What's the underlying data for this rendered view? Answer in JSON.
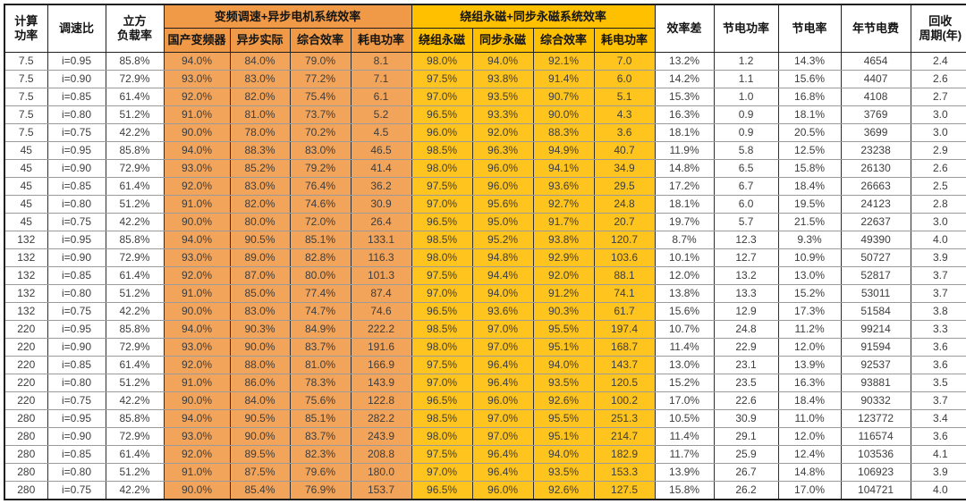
{
  "colors": {
    "orange_header": "#F09A47",
    "orange_cell": "#F2A45B",
    "yellow_header": "#FFC000",
    "yellow_cell": "#FFC51E"
  },
  "table": {
    "header": {
      "calc_power": "计算\n功率",
      "speed_ratio": "调速比",
      "cubic_load": "立方\n负载率",
      "group_vfd": "变频调速+异步电机系统效率",
      "group_pm": "绕组永磁+同步永磁系统效率",
      "vfd_sub": [
        "国产变频器",
        "异步实际",
        "综合效率",
        "耗电功率"
      ],
      "pm_sub": [
        "绕组永磁",
        "同步永磁",
        "综合效率",
        "耗电功率"
      ],
      "eff_diff": "效率差",
      "save_power": "节电功率",
      "save_rate": "节电率",
      "annual_fee": "年节电费",
      "payback": "回收\n周期(年)"
    },
    "rows": [
      [
        "7.5",
        "i=0.95",
        "85.8%",
        "94.0%",
        "84.0%",
        "79.0%",
        "8.1",
        "98.0%",
        "94.0%",
        "92.1%",
        "7.0",
        "13.2%",
        "1.2",
        "14.3%",
        "4654",
        "2.4"
      ],
      [
        "7.5",
        "i=0.90",
        "72.9%",
        "93.0%",
        "83.0%",
        "77.2%",
        "7.1",
        "97.5%",
        "93.8%",
        "91.4%",
        "6.0",
        "14.2%",
        "1.1",
        "15.6%",
        "4407",
        "2.6"
      ],
      [
        "7.5",
        "i=0.85",
        "61.4%",
        "92.0%",
        "82.0%",
        "75.4%",
        "6.1",
        "97.0%",
        "93.5%",
        "90.7%",
        "5.1",
        "15.3%",
        "1.0",
        "16.8%",
        "4108",
        "2.7"
      ],
      [
        "7.5",
        "i=0.80",
        "51.2%",
        "91.0%",
        "81.0%",
        "73.7%",
        "5.2",
        "96.5%",
        "93.3%",
        "90.0%",
        "4.3",
        "16.3%",
        "0.9",
        "18.1%",
        "3769",
        "3.0"
      ],
      [
        "7.5",
        "i=0.75",
        "42.2%",
        "90.0%",
        "78.0%",
        "70.2%",
        "4.5",
        "96.0%",
        "92.0%",
        "88.3%",
        "3.6",
        "18.1%",
        "0.9",
        "20.5%",
        "3699",
        "3.0"
      ],
      [
        "45",
        "i=0.95",
        "85.8%",
        "94.0%",
        "88.3%",
        "83.0%",
        "46.5",
        "98.5%",
        "96.3%",
        "94.9%",
        "40.7",
        "11.9%",
        "5.8",
        "12.5%",
        "23238",
        "2.9"
      ],
      [
        "45",
        "i=0.90",
        "72.9%",
        "93.0%",
        "85.2%",
        "79.2%",
        "41.4",
        "98.0%",
        "96.0%",
        "94.1%",
        "34.9",
        "14.8%",
        "6.5",
        "15.8%",
        "26130",
        "2.6"
      ],
      [
        "45",
        "i=0.85",
        "61.4%",
        "92.0%",
        "83.0%",
        "76.4%",
        "36.2",
        "97.5%",
        "96.0%",
        "93.6%",
        "29.5",
        "17.2%",
        "6.7",
        "18.4%",
        "26663",
        "2.5"
      ],
      [
        "45",
        "i=0.80",
        "51.2%",
        "91.0%",
        "82.0%",
        "74.6%",
        "30.9",
        "97.0%",
        "95.6%",
        "92.7%",
        "24.8",
        "18.1%",
        "6.0",
        "19.5%",
        "24123",
        "2.8"
      ],
      [
        "45",
        "i=0.75",
        "42.2%",
        "90.0%",
        "80.0%",
        "72.0%",
        "26.4",
        "96.5%",
        "95.0%",
        "91.7%",
        "20.7",
        "19.7%",
        "5.7",
        "21.5%",
        "22637",
        "3.0"
      ],
      [
        "132",
        "i=0.95",
        "85.8%",
        "94.0%",
        "90.5%",
        "85.1%",
        "133.1",
        "98.5%",
        "95.2%",
        "93.8%",
        "120.7",
        "8.7%",
        "12.3",
        "9.3%",
        "49390",
        "4.0"
      ],
      [
        "132",
        "i=0.90",
        "72.9%",
        "93.0%",
        "89.0%",
        "82.8%",
        "116.3",
        "98.0%",
        "94.8%",
        "92.9%",
        "103.6",
        "10.1%",
        "12.7",
        "10.9%",
        "50727",
        "3.9"
      ],
      [
        "132",
        "i=0.85",
        "61.4%",
        "92.0%",
        "87.0%",
        "80.0%",
        "101.3",
        "97.5%",
        "94.4%",
        "92.0%",
        "88.1",
        "12.0%",
        "13.2",
        "13.0%",
        "52817",
        "3.7"
      ],
      [
        "132",
        "i=0.80",
        "51.2%",
        "91.0%",
        "85.0%",
        "77.4%",
        "87.4",
        "97.0%",
        "94.0%",
        "91.2%",
        "74.1",
        "13.8%",
        "13.3",
        "15.2%",
        "53011",
        "3.7"
      ],
      [
        "132",
        "i=0.75",
        "42.2%",
        "90.0%",
        "83.0%",
        "74.7%",
        "74.6",
        "96.5%",
        "93.6%",
        "90.3%",
        "61.7",
        "15.6%",
        "12.9",
        "17.3%",
        "51584",
        "3.8"
      ],
      [
        "220",
        "i=0.95",
        "85.8%",
        "94.0%",
        "90.3%",
        "84.9%",
        "222.2",
        "98.5%",
        "97.0%",
        "95.5%",
        "197.4",
        "10.7%",
        "24.8",
        "11.2%",
        "99214",
        "3.3"
      ],
      [
        "220",
        "i=0.90",
        "72.9%",
        "93.0%",
        "90.0%",
        "83.7%",
        "191.6",
        "98.0%",
        "97.0%",
        "95.1%",
        "168.7",
        "11.4%",
        "22.9",
        "12.0%",
        "91594",
        "3.6"
      ],
      [
        "220",
        "i=0.85",
        "61.4%",
        "92.0%",
        "88.0%",
        "81.0%",
        "166.9",
        "97.5%",
        "96.4%",
        "94.0%",
        "143.7",
        "13.0%",
        "23.1",
        "13.9%",
        "92537",
        "3.6"
      ],
      [
        "220",
        "i=0.80",
        "51.2%",
        "91.0%",
        "86.0%",
        "78.3%",
        "143.9",
        "97.0%",
        "96.4%",
        "93.5%",
        "120.5",
        "15.2%",
        "23.5",
        "16.3%",
        "93881",
        "3.5"
      ],
      [
        "220",
        "i=0.75",
        "42.2%",
        "90.0%",
        "84.0%",
        "75.6%",
        "122.8",
        "96.5%",
        "96.0%",
        "92.6%",
        "100.2",
        "17.0%",
        "22.6",
        "18.4%",
        "90332",
        "3.7"
      ],
      [
        "280",
        "i=0.95",
        "85.8%",
        "94.0%",
        "90.5%",
        "85.1%",
        "282.2",
        "98.5%",
        "97.0%",
        "95.5%",
        "251.3",
        "10.5%",
        "30.9",
        "11.0%",
        "123772",
        "3.4"
      ],
      [
        "280",
        "i=0.90",
        "72.9%",
        "93.0%",
        "90.0%",
        "83.7%",
        "243.9",
        "98.0%",
        "97.0%",
        "95.1%",
        "214.7",
        "11.4%",
        "29.1",
        "12.0%",
        "116574",
        "3.6"
      ],
      [
        "280",
        "i=0.85",
        "61.4%",
        "92.0%",
        "89.5%",
        "82.3%",
        "208.8",
        "97.5%",
        "96.4%",
        "94.0%",
        "182.9",
        "11.7%",
        "25.9",
        "12.4%",
        "103536",
        "4.1"
      ],
      [
        "280",
        "i=0.80",
        "51.2%",
        "91.0%",
        "87.5%",
        "79.6%",
        "180.0",
        "97.0%",
        "96.4%",
        "93.5%",
        "153.3",
        "13.9%",
        "26.7",
        "14.8%",
        "106923",
        "3.9"
      ],
      [
        "280",
        "i=0.75",
        "42.2%",
        "90.0%",
        "85.4%",
        "76.9%",
        "153.7",
        "96.5%",
        "96.0%",
        "92.6%",
        "127.5",
        "15.8%",
        "26.2",
        "17.0%",
        "104721",
        "4.0"
      ]
    ]
  }
}
